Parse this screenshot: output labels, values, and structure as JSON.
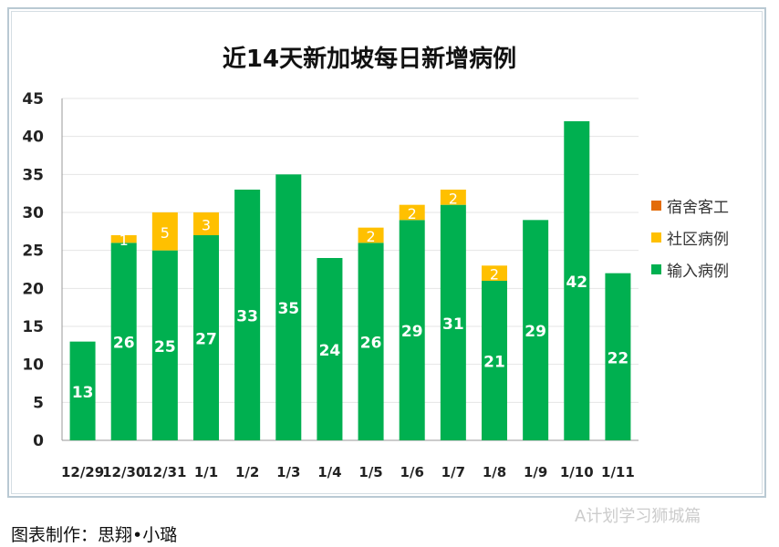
{
  "chart_data": {
    "type": "bar",
    "stacked": true,
    "title": "近14天新加坡每日新增病例",
    "categories": [
      "12/29",
      "12/30",
      "12/31",
      "1/1",
      "1/2",
      "1/3",
      "1/4",
      "1/5",
      "1/6",
      "1/7",
      "1/8",
      "1/9",
      "1/10",
      "1/11"
    ],
    "series": [
      {
        "name": "输入病例",
        "color": "#00B050",
        "values": [
          13,
          26,
          25,
          27,
          33,
          35,
          24,
          26,
          29,
          31,
          21,
          29,
          42,
          22
        ]
      },
      {
        "name": "社区病例",
        "color": "#FFC000",
        "values": [
          0,
          1,
          5,
          3,
          0,
          0,
          0,
          2,
          2,
          2,
          2,
          0,
          0,
          0
        ]
      },
      {
        "name": "宿舍客工",
        "color": "#E36C09",
        "values": [
          0,
          0,
          0,
          0,
          0,
          0,
          0,
          0,
          0,
          0,
          0,
          0,
          0,
          0
        ]
      }
    ],
    "ylim": [
      0,
      45
    ],
    "yticks": [
      0,
      5,
      10,
      15,
      20,
      25,
      30,
      35,
      40,
      45
    ],
    "grid": true,
    "legend_position": "right"
  },
  "credit": "图表制作：思翔•小璐",
  "watermark": "A计划学习狮城篇"
}
